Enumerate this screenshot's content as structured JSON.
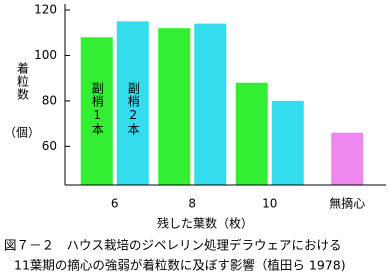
{
  "chart_data": {
    "type": "bar",
    "y_label": "着粒数",
    "y_unit": "（個）",
    "x_label": "残した葉数（枚）",
    "caption": [
      "図７－２　ハウス栽培のジベレリン処理デラウェアにおける",
      "11葉期の摘心の強弱が着粒数に及ぼす影響（植田ら 1978)"
    ],
    "categories": [
      "6",
      "8",
      "10",
      "無摘心"
    ],
    "series": [
      {
        "name": "副梢1本",
        "color": "#33ee33",
        "values": [
          108,
          112,
          88,
          null
        ]
      },
      {
        "name": "副梢2本",
        "color": "#33ddee",
        "values": [
          115,
          114,
          80,
          null
        ]
      },
      {
        "color": "#ee88ee",
        "values": [
          null,
          null,
          null,
          66
        ]
      }
    ],
    "ylim": [
      43,
      120
    ],
    "yticks": [
      60,
      80,
      100,
      120
    ]
  }
}
